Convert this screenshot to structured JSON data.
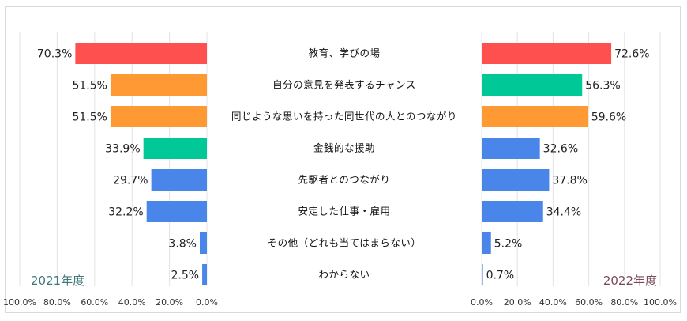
{
  "chart_data": {
    "type": "bar",
    "layout": "butterfly",
    "categories": [
      "教育、学びの場",
      "自分の意見を発表するチャンス",
      "同じような思いを持った同世代の人とのつながり",
      "金銭的な援助",
      "先駆者とのつながり",
      "安定した仕事・雇用",
      "その他（どれも当てはまらない）",
      "わからない"
    ],
    "series": [
      {
        "name": "2021年度",
        "side": "left",
        "values": [
          70.3,
          51.5,
          51.5,
          33.9,
          29.7,
          32.2,
          3.8,
          2.5
        ],
        "value_labels": [
          "70.3%",
          "51.5%",
          "51.5%",
          "33.9%",
          "29.7%",
          "32.2%",
          "3.8%",
          "2.5%"
        ],
        "colors": [
          "#ff5050",
          "#ff9933",
          "#ff9933",
          "#00c896",
          "#4a86ea",
          "#4a86ea",
          "#4a86ea",
          "#4a86ea"
        ]
      },
      {
        "name": "2022年度",
        "side": "right",
        "values": [
          72.6,
          56.3,
          59.6,
          32.6,
          37.8,
          34.4,
          5.2,
          0.7
        ],
        "value_labels": [
          "72.6%",
          "56.3%",
          "59.6%",
          "32.6%",
          "37.8%",
          "34.4%",
          "5.2%",
          "0.7%"
        ],
        "colors": [
          "#ff5050",
          "#00c896",
          "#ff9933",
          "#4a86ea",
          "#4a86ea",
          "#4a86ea",
          "#4a86ea",
          "#4a86ea"
        ]
      }
    ],
    "xlim": [
      0,
      100
    ],
    "left_ticks": [
      "100.0%",
      "80.0%",
      "60.0%",
      "40.0%",
      "20.0%",
      "0.0%"
    ],
    "right_ticks": [
      "0.0%",
      "20.0%",
      "40.0%",
      "60.0%",
      "80.0%",
      "100.0%"
    ],
    "year_label_colors": {
      "left": "#3d7a7a",
      "right": "#7a4a5a"
    },
    "grid": true
  }
}
